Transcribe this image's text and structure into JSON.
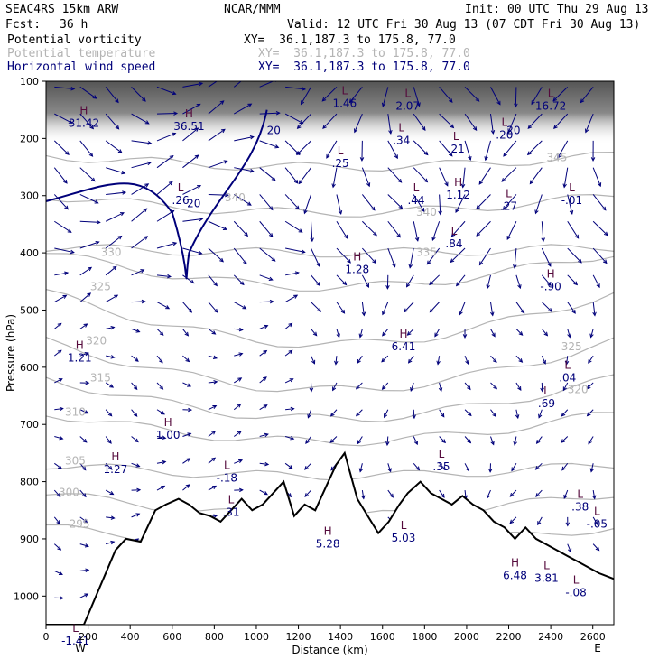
{
  "header": {
    "model": "SEAC4RS 15km ARW",
    "center": "NCAR/MMM",
    "init": "Init: 00 UTC Thu 29 Aug 13",
    "fcst_label": "Fcst:",
    "fcst_value": "36 h",
    "valid": "Valid: 12 UTC Fri 30 Aug 13 (07 CDT Fri 30 Aug 13)",
    "fields": [
      {
        "name": "Potential vorticity",
        "xy": "XY=  36.1,187.3 to 175.8, 77.0",
        "color": "#000000"
      },
      {
        "name": "Potential temperature",
        "xy": "XY=  36.1,187.3 to 175.8, 77.0",
        "color": "#b4b4b4"
      },
      {
        "name": "Horizontal wind speed",
        "xy": "XY=  36.1,187.3 to 175.8, 77.0",
        "color": "#00007a"
      }
    ]
  },
  "chart_data": {
    "type": "cross-section",
    "xlabel": "Distance (km)",
    "ylabel": "Pressure (hPa)",
    "xlim": [
      0,
      2700
    ],
    "ylim": [
      1050,
      100
    ],
    "x_ticks": [
      "0",
      "200",
      "400",
      "600",
      "800",
      "1000",
      "1200",
      "1400",
      "1600",
      "1800",
      "2000",
      "2200",
      "2400",
      "2600"
    ],
    "y_ticks": [
      "100",
      "200",
      "300",
      "400",
      "500",
      "600",
      "700",
      "800",
      "900",
      "1000"
    ],
    "x_end_labels": {
      "left": "W",
      "right": "E"
    },
    "colors": {
      "theta": "#b4b4b4",
      "wind": "#00007a",
      "pv": "#ff9999",
      "terrain": "#000000",
      "pv_label": "#550a3c"
    },
    "theta_labels": [
      {
        "text": "345",
        "x": 2380,
        "p": 240
      },
      {
        "text": "340",
        "x": 850,
        "p": 310
      },
      {
        "text": "340",
        "x": 1760,
        "p": 335
      },
      {
        "text": "335",
        "x": 1760,
        "p": 405
      },
      {
        "text": "330",
        "x": 260,
        "p": 405
      },
      {
        "text": "325",
        "x": 210,
        "p": 465
      },
      {
        "text": "325",
        "x": 2450,
        "p": 570
      },
      {
        "text": "320",
        "x": 190,
        "p": 560
      },
      {
        "text": "320",
        "x": 2480,
        "p": 645
      },
      {
        "text": "315",
        "x": 210,
        "p": 625
      },
      {
        "text": "310",
        "x": 90,
        "p": 685
      },
      {
        "text": "305",
        "x": 90,
        "p": 770
      },
      {
        "text": "300",
        "x": 60,
        "p": 825
      },
      {
        "text": "295",
        "x": 110,
        "p": 880
      }
    ],
    "wind_labels": [
      {
        "text": "20",
        "x": 1050,
        "p": 192
      },
      {
        "text": "20",
        "x": 670,
        "p": 320
      },
      {
        "text": "20",
        "x": 2190,
        "p": 192
      }
    ],
    "extrema": [
      {
        "type": "H",
        "value": "31.42",
        "x": 180,
        "p": 180
      },
      {
        "type": "H",
        "value": "36.51",
        "x": 680,
        "p": 185
      },
      {
        "type": "L",
        "value": "1.46",
        "x": 1420,
        "p": 145
      },
      {
        "type": "L",
        "value": "2.07",
        "x": 1720,
        "p": 150
      },
      {
        "type": "L",
        "value": ".34",
        "x": 1690,
        "p": 210
      },
      {
        "type": "L",
        "value": ".21",
        "x": 1950,
        "p": 225
      },
      {
        "type": "L",
        "value": ".20",
        "x": 2180,
        "p": 200
      },
      {
        "type": "L",
        "value": "16.72",
        "x": 2400,
        "p": 150
      },
      {
        "type": "L",
        "value": ".25",
        "x": 1400,
        "p": 250
      },
      {
        "type": "L",
        "value": ".26",
        "x": 640,
        "p": 315
      },
      {
        "type": "L",
        "value": ".44",
        "x": 1760,
        "p": 315
      },
      {
        "type": "H",
        "value": "1.12",
        "x": 1960,
        "p": 305
      },
      {
        "type": "L",
        "value": ".27",
        "x": 2200,
        "p": 325
      },
      {
        "type": "L",
        "value": "-.01",
        "x": 2500,
        "p": 315
      },
      {
        "type": "L",
        "value": ".84",
        "x": 1940,
        "p": 390
      },
      {
        "type": "H",
        "value": "1.28",
        "x": 1480,
        "p": 435
      },
      {
        "type": "H",
        "value": "-.90",
        "x": 2400,
        "p": 465
      },
      {
        "type": "H",
        "value": "6.41",
        "x": 1700,
        "p": 570
      },
      {
        "type": "H",
        "value": "1.21",
        "x": 160,
        "p": 590
      },
      {
        "type": "L",
        "value": ".04",
        "x": 2480,
        "p": 625
      },
      {
        "type": "L",
        "value": ".69",
        "x": 2380,
        "p": 670
      },
      {
        "type": "H",
        "value": "1.00",
        "x": 580,
        "p": 725
      },
      {
        "type": "H",
        "value": "1.27",
        "x": 330,
        "p": 785
      },
      {
        "type": "L",
        "value": "-.18",
        "x": 860,
        "p": 800
      },
      {
        "type": "L",
        "value": ".35",
        "x": 1880,
        "p": 780
      },
      {
        "type": "L",
        "value": ".31",
        "x": 880,
        "p": 860
      },
      {
        "type": "L",
        "value": ".38",
        "x": 2540,
        "p": 850
      },
      {
        "type": "L",
        "value": "-.05",
        "x": 2620,
        "p": 880
      },
      {
        "type": "H",
        "value": "5.28",
        "x": 1340,
        "p": 915
      },
      {
        "type": "L",
        "value": "5.03",
        "x": 1700,
        "p": 905
      },
      {
        "type": "H",
        "value": "6.48",
        "x": 2230,
        "p": 970
      },
      {
        "type": "L",
        "value": "3.81",
        "x": 2380,
        "p": 975
      },
      {
        "type": "L",
        "value": "-.08",
        "x": 2520,
        "p": 1000
      },
      {
        "type": "L",
        "value": "-1.41",
        "x": 140,
        "p": 1085
      }
    ]
  }
}
